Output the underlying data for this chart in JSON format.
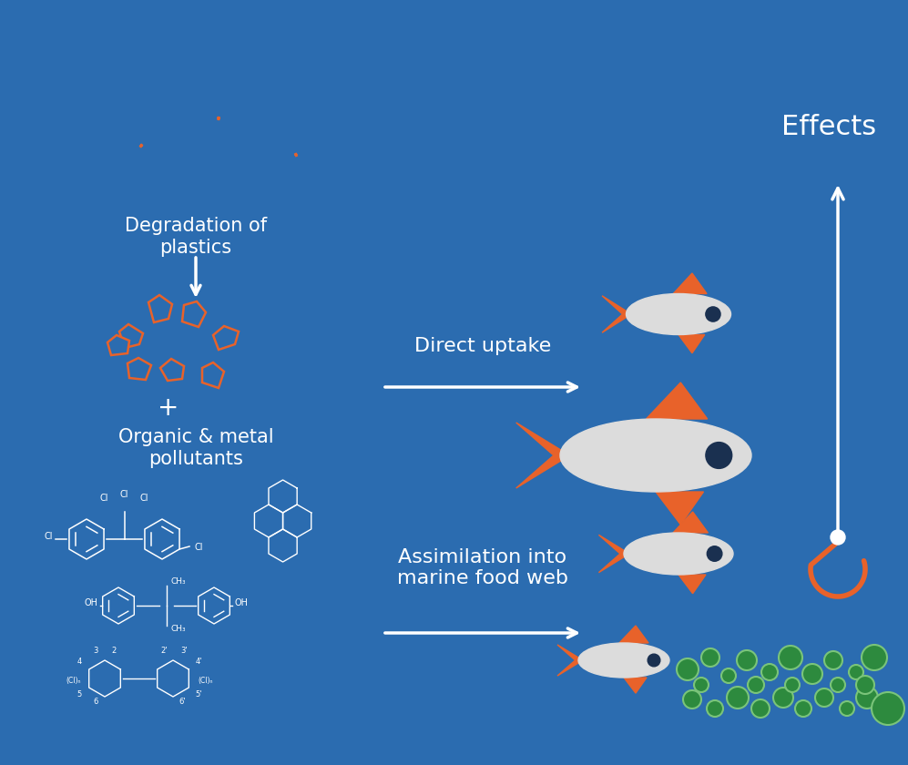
{
  "bg_color": "#2b6cb0",
  "text_color": "#ffffff",
  "orange_color": "#e8622a",
  "green_color": "#2d8a3e",
  "green_border": "#7ac47a",
  "fish_body": "#dcdcdc",
  "figsize": [
    9.97,
    8.4
  ],
  "dpi": 100,
  "title_effects": "Effects",
  "label_direct": "Direct uptake",
  "label_assimilation": "Assimilation into\nmarine food web",
  "label_degradation": "Degradation of\nplastics",
  "label_pollutants": "Organic & metal\npollutants"
}
